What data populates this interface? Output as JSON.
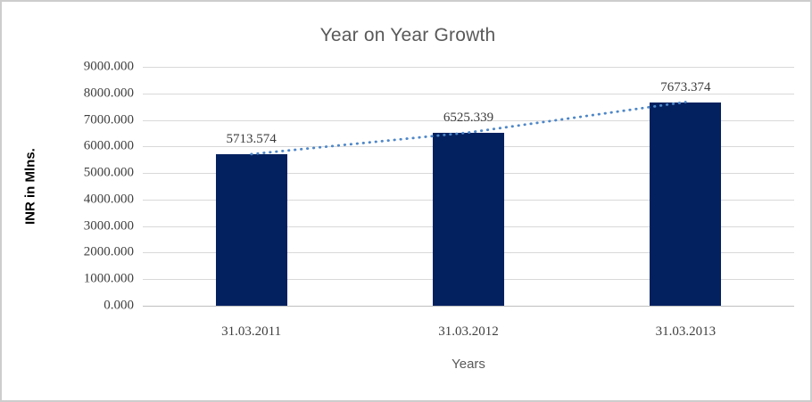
{
  "chart_data": {
    "type": "bar",
    "title": "Year on Year Growth",
    "categories": [
      "31.03.2011",
      "31.03.2012",
      "31.03.2013"
    ],
    "values": [
      5713.574,
      6525.339,
      7673.374
    ],
    "data_labels": [
      "5713.574",
      "6525.339",
      "7673.374"
    ],
    "xlabel": "Years",
    "ylabel": "INR in Mlns.",
    "ylim": [
      0,
      9000
    ],
    "ytick_step": 1000,
    "ytick_labels": [
      "0.000",
      "1000.000",
      "2000.000",
      "3000.000",
      "4000.000",
      "5000.000",
      "6000.000",
      "7000.000",
      "8000.000",
      "9000.000"
    ],
    "grid": true,
    "legend": "none",
    "trendline": {
      "type": "linear",
      "style": "dotted"
    },
    "colors": {
      "bar": "#04215f",
      "gridline": "#d9d9d9",
      "axis_line": "#bfbfbf",
      "trendline": "#4e87c8",
      "title_text": "#595959",
      "tick_text": "#3f3f3f",
      "frame_border": "#cdcdcd"
    }
  }
}
